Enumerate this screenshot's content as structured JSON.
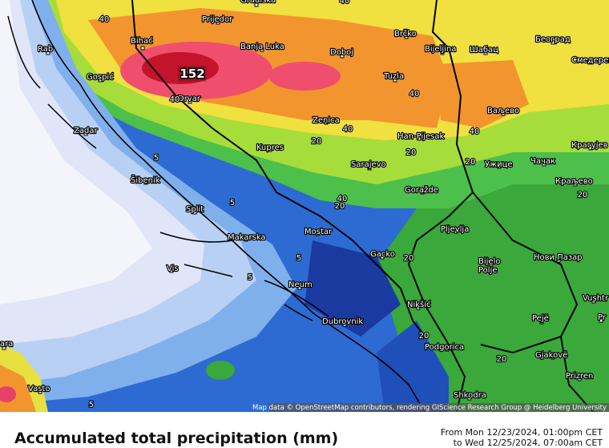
{
  "map": {
    "max_label": "152",
    "cities": [
      "Gradiška",
      "Prijedor",
      "Bihać",
      "Rab",
      "Banja Luka",
      "Doboj",
      "Brčko",
      "Bijeljina",
      "Шабац",
      "Београд",
      "Смедерево",
      "Gospić",
      "Tuzla",
      "Drvar",
      "Ваљево",
      "Zadar",
      "Zenica",
      "Han-Pijesak",
      "Kupres",
      "Крагујев",
      "Чачак",
      "Ужице",
      "Šibenik",
      "Sarajevo",
      "Краљево",
      "Goražde",
      "Split",
      "Pljevlja",
      "Mostar",
      "Makarska",
      "Gacko",
      "Нови Пазар",
      "Bijelo\nPolje",
      "Vis",
      "Neum",
      "Nikšić",
      "Vushtr",
      "Pejë",
      "Pr",
      "Dubrovnik",
      "Podgorica",
      "Gjakovë",
      "Prizren",
      "Vasto",
      "Shkodra",
      "ara"
    ],
    "contour_labels": [
      "40",
      "40",
      "40",
      "40",
      "40",
      "40",
      "40",
      "20",
      "20",
      "20",
      "20",
      "20",
      "20",
      "20",
      "20",
      "5",
      "5",
      "5",
      "5",
      "5"
    ],
    "attribution": "Map data © OpenStreetMap contributors, rendering GIScience Research Group @ Heidelberg University"
  },
  "footer": {
    "title": "Accumulated total precipitation (mm)",
    "from": "From Mon 12/23/2024, 01:00pm CET",
    "to": "to Wed 12/25/2024, 07:00am CET"
  }
}
